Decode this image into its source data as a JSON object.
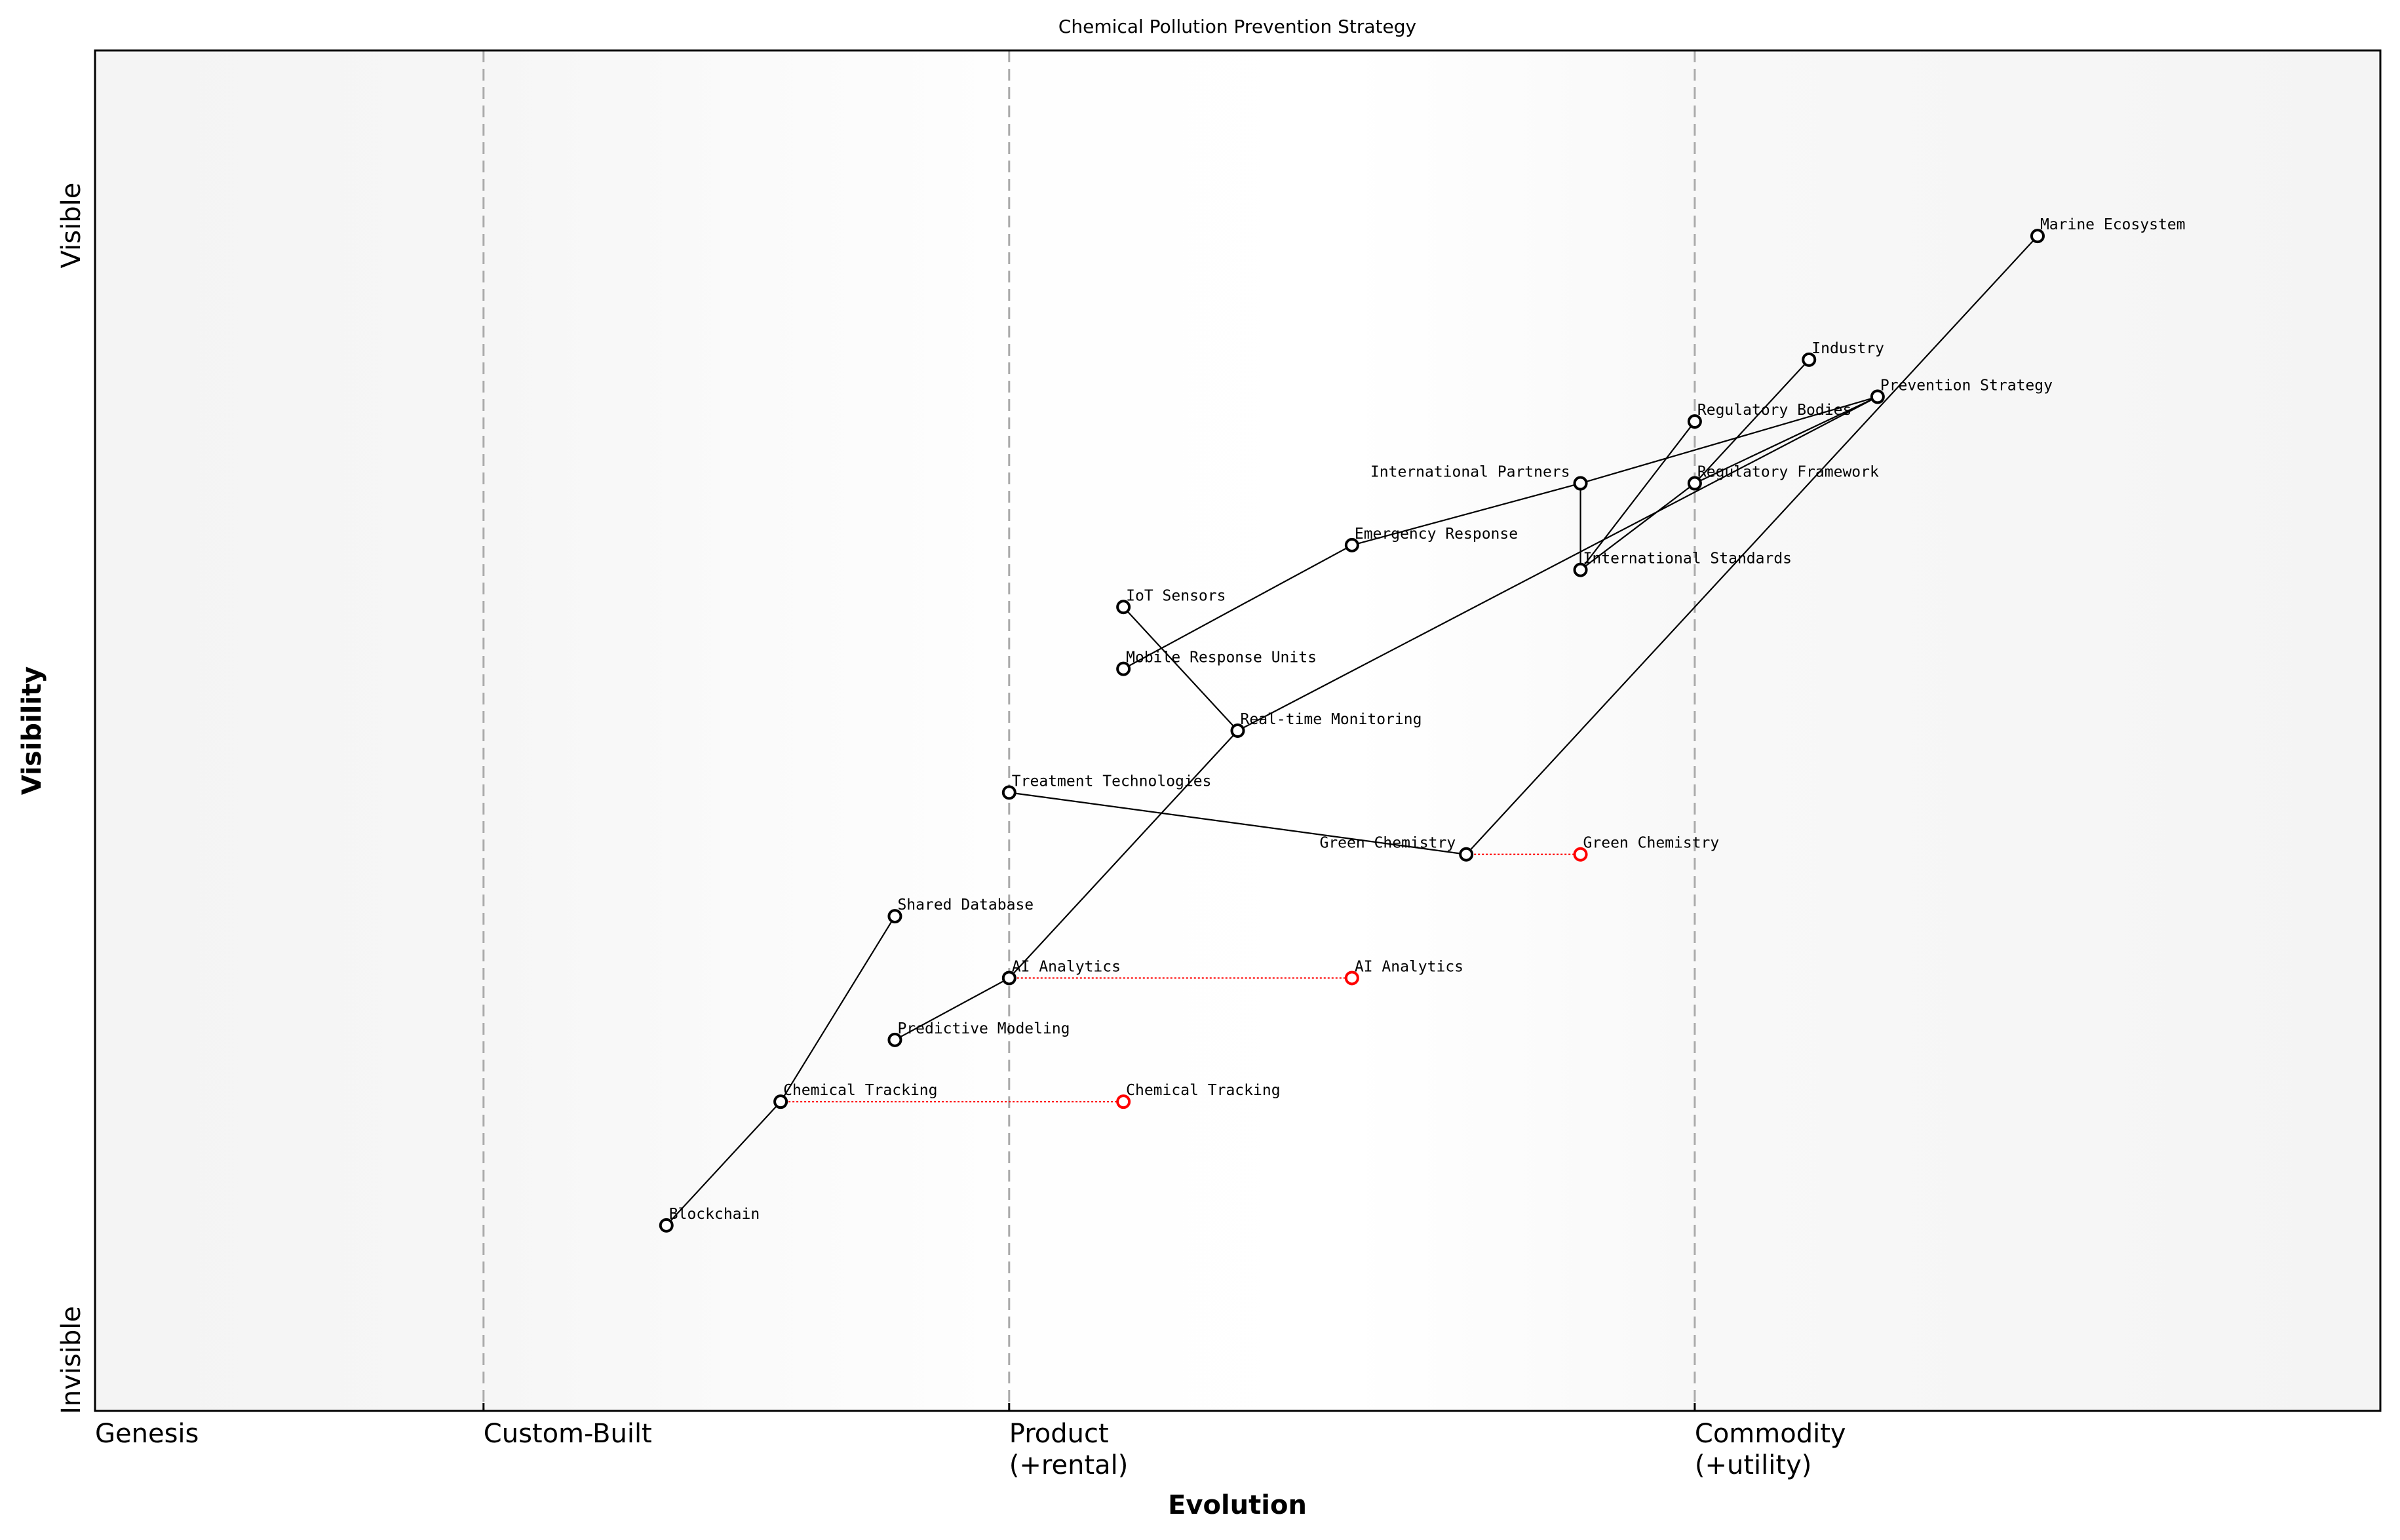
{
  "chart_data": {
    "type": "wardley-map",
    "title": "Chemical Pollution Prevention Strategy",
    "xlabel": "Evolution",
    "ylabel": "Visibility",
    "xlim": [
      0,
      1
    ],
    "ylim": [
      0,
      1.1
    ],
    "x_stages": [
      {
        "label": "Genesis",
        "x": 0
      },
      {
        "label": "Custom-Built",
        "x": 0.17
      },
      {
        "label": "Product\n(+rental)",
        "x": 0.4
      },
      {
        "label": "Commodity\n(+utility)",
        "x": 0.7
      }
    ],
    "y_labels": {
      "top": "Visible",
      "bottom": "Invisible"
    },
    "colors": {
      "node": "#000000",
      "evolved": "#ff0000",
      "stage_line": "#aaaaaa",
      "background_edge": "#f5f5f5",
      "background_mid": "#ffffff"
    },
    "nodes": [
      {
        "name": "Marine Ecosystem",
        "evolution": 0.85,
        "visibility": 0.95
      },
      {
        "name": "Industry",
        "evolution": 0.75,
        "visibility": 0.85
      },
      {
        "name": "Prevention Strategy",
        "evolution": 0.78,
        "visibility": 0.82
      },
      {
        "name": "Regulatory Bodies",
        "evolution": 0.7,
        "visibility": 0.8
      },
      {
        "name": "International Partners",
        "evolution": 0.65,
        "visibility": 0.75
      },
      {
        "name": "Regulatory Framework",
        "evolution": 0.7,
        "visibility": 0.75
      },
      {
        "name": "International Standards",
        "evolution": 0.65,
        "visibility": 0.68
      },
      {
        "name": "Emergency Response",
        "evolution": 0.55,
        "visibility": 0.7
      },
      {
        "name": "IoT Sensors",
        "evolution": 0.45,
        "visibility": 0.65
      },
      {
        "name": "Mobile Response Units",
        "evolution": 0.45,
        "visibility": 0.6
      },
      {
        "name": "Real-time Monitoring",
        "evolution": 0.5,
        "visibility": 0.55
      },
      {
        "name": "Treatment Technologies",
        "evolution": 0.4,
        "visibility": 0.5
      },
      {
        "name": "Green Chemistry",
        "evolution": 0.6,
        "visibility": 0.45
      },
      {
        "name": "Shared Database",
        "evolution": 0.35,
        "visibility": 0.4
      },
      {
        "name": "AI Analytics",
        "evolution": 0.4,
        "visibility": 0.35
      },
      {
        "name": "Predictive Modeling",
        "evolution": 0.35,
        "visibility": 0.3
      },
      {
        "name": "Chemical Tracking",
        "evolution": 0.3,
        "visibility": 0.25
      },
      {
        "name": "Blockchain",
        "evolution": 0.25,
        "visibility": 0.15
      }
    ],
    "links": [
      [
        "Blockchain",
        "Chemical Tracking"
      ],
      [
        "Chemical Tracking",
        "Shared Database"
      ],
      [
        "Predictive Modeling",
        "AI Analytics"
      ],
      [
        "AI Analytics",
        "Real-time Monitoring"
      ],
      [
        "Real-time Monitoring",
        "IoT Sensors"
      ],
      [
        "Real-time Monitoring",
        "Prevention Strategy"
      ],
      [
        "Mobile Response Units",
        "Emergency Response"
      ],
      [
        "Emergency Response",
        "International Partners"
      ],
      [
        "International Partners",
        "Prevention Strategy"
      ],
      [
        "International Partners",
        "International Standards"
      ],
      [
        "International Standards",
        "Regulatory Bodies"
      ],
      [
        "International Standards",
        "Regulatory Framework"
      ],
      [
        "Regulatory Framework",
        "Industry"
      ],
      [
        "Regulatory Framework",
        "Prevention Strategy"
      ],
      [
        "Treatment Technologies",
        "Green Chemistry"
      ],
      [
        "Green Chemistry",
        "Marine Ecosystem"
      ]
    ],
    "evolutions": [
      {
        "name": "Chemical Tracking",
        "from": 0.3,
        "to": 0.45,
        "visibility": 0.25
      },
      {
        "name": "AI Analytics",
        "from": 0.4,
        "to": 0.55,
        "visibility": 0.35
      },
      {
        "name": "Green Chemistry",
        "from": 0.6,
        "to": 0.65,
        "visibility": 0.45
      }
    ]
  }
}
